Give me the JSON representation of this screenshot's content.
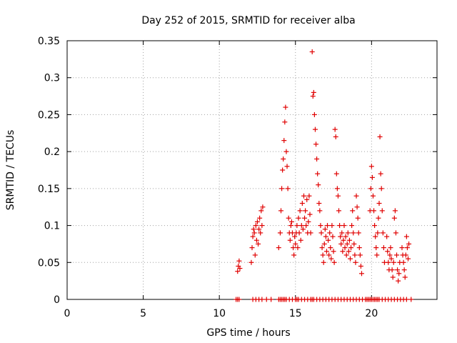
{
  "chart_data": {
    "type": "scatter",
    "title": "Day 252 of 2015, SRMTID for receiver alba",
    "xlabel": "GPS time / hours",
    "ylabel": "SRMTID / TECUs",
    "xlim": [
      0,
      24.3
    ],
    "ylim": [
      0,
      0.35
    ],
    "xticks": [
      0,
      5,
      10,
      15,
      20
    ],
    "xtick_labels": [
      "0",
      "5",
      "10",
      "15",
      "20"
    ],
    "yticks": [
      0,
      0.05,
      0.1,
      0.15,
      0.2,
      0.25,
      0.3,
      0.35
    ],
    "ytick_labels": [
      "0",
      "0.05",
      "0.1",
      "0.15",
      "0.2",
      "0.25",
      "0.3",
      "0.35"
    ],
    "grid": true,
    "legend": "none",
    "marker": "+",
    "marker_color": "#e00000",
    "series": [
      {
        "name": "SRMTID",
        "points": [
          [
            11.2,
            0.038
          ],
          [
            11.25,
            0.045
          ],
          [
            11.3,
            0.052
          ],
          [
            11.35,
            0.042
          ],
          [
            12.1,
            0.05
          ],
          [
            12.15,
            0.07
          ],
          [
            12.2,
            0.085
          ],
          [
            12.25,
            0.095
          ],
          [
            12.3,
            0.09
          ],
          [
            12.35,
            0.06
          ],
          [
            12.4,
            0.1
          ],
          [
            12.45,
            0.08
          ],
          [
            12.5,
            0.105
          ],
          [
            12.55,
            0.075
          ],
          [
            12.6,
            0.095
          ],
          [
            12.65,
            0.11
          ],
          [
            12.7,
            0.09
          ],
          [
            12.75,
            0.12
          ],
          [
            12.8,
            0.1
          ],
          [
            12.85,
            0.125
          ],
          [
            13.9,
            0.07
          ],
          [
            14.0,
            0.09
          ],
          [
            14.05,
            0.12
          ],
          [
            14.1,
            0.15
          ],
          [
            14.15,
            0.175
          ],
          [
            14.2,
            0.19
          ],
          [
            14.25,
            0.215
          ],
          [
            14.3,
            0.24
          ],
          [
            14.35,
            0.26
          ],
          [
            14.4,
            0.2
          ],
          [
            14.45,
            0.18
          ],
          [
            14.5,
            0.15
          ],
          [
            14.55,
            0.11
          ],
          [
            14.6,
            0.09
          ],
          [
            14.65,
            0.08
          ],
          [
            14.7,
            0.1
          ],
          [
            14.75,
            0.105
          ],
          [
            14.8,
            0.09
          ],
          [
            14.85,
            0.07
          ],
          [
            14.9,
            0.06
          ],
          [
            14.95,
            0.085
          ],
          [
            15.0,
            0.075
          ],
          [
            15.05,
            0.09
          ],
          [
            15.1,
            0.1
          ],
          [
            15.15,
            0.07
          ],
          [
            15.2,
            0.11
          ],
          [
            15.25,
            0.09
          ],
          [
            15.3,
            0.12
          ],
          [
            15.35,
            0.08
          ],
          [
            15.4,
            0.1
          ],
          [
            15.45,
            0.13
          ],
          [
            15.5,
            0.095
          ],
          [
            15.55,
            0.14
          ],
          [
            15.6,
            0.11
          ],
          [
            15.65,
            0.12
          ],
          [
            15.7,
            0.1
          ],
          [
            15.75,
            0.135
          ],
          [
            15.8,
            0.09
          ],
          [
            15.85,
            0.105
          ],
          [
            15.9,
            0.14
          ],
          [
            15.95,
            0.115
          ],
          [
            16.0,
            0.09
          ],
          [
            16.1,
            0.335
          ],
          [
            16.15,
            0.275
          ],
          [
            16.2,
            0.28
          ],
          [
            16.25,
            0.25
          ],
          [
            16.3,
            0.23
          ],
          [
            16.35,
            0.21
          ],
          [
            16.4,
            0.19
          ],
          [
            16.45,
            0.17
          ],
          [
            16.5,
            0.155
          ],
          [
            16.55,
            0.13
          ],
          [
            16.6,
            0.12
          ],
          [
            16.65,
            0.1
          ],
          [
            16.7,
            0.09
          ],
          [
            16.75,
            0.07
          ],
          [
            16.8,
            0.06
          ],
          [
            16.85,
            0.05
          ],
          [
            16.9,
            0.075
          ],
          [
            16.95,
            0.095
          ],
          [
            17.0,
            0.085
          ],
          [
            17.05,
            0.065
          ],
          [
            17.1,
            0.1
          ],
          [
            17.15,
            0.08
          ],
          [
            17.2,
            0.06
          ],
          [
            17.25,
            0.09
          ],
          [
            17.3,
            0.07
          ],
          [
            17.35,
            0.055
          ],
          [
            17.4,
            0.1
          ],
          [
            17.45,
            0.085
          ],
          [
            17.5,
            0.065
          ],
          [
            17.55,
            0.05
          ],
          [
            17.6,
            0.23
          ],
          [
            17.65,
            0.22
          ],
          [
            17.7,
            0.17
          ],
          [
            17.75,
            0.15
          ],
          [
            17.8,
            0.14
          ],
          [
            17.85,
            0.12
          ],
          [
            17.9,
            0.1
          ],
          [
            17.95,
            0.085
          ],
          [
            18.0,
            0.075
          ],
          [
            18.05,
            0.09
          ],
          [
            18.1,
            0.065
          ],
          [
            18.15,
            0.08
          ],
          [
            18.2,
            0.1
          ],
          [
            18.25,
            0.07
          ],
          [
            18.3,
            0.085
          ],
          [
            18.35,
            0.06
          ],
          [
            18.4,
            0.075
          ],
          [
            18.45,
            0.09
          ],
          [
            18.5,
            0.065
          ],
          [
            18.55,
            0.08
          ],
          [
            18.6,
            0.055
          ],
          [
            18.65,
            0.07
          ],
          [
            18.7,
            0.1
          ],
          [
            18.75,
            0.12
          ],
          [
            18.8,
            0.09
          ],
          [
            18.85,
            0.075
          ],
          [
            18.9,
            0.06
          ],
          [
            18.95,
            0.05
          ],
          [
            19.0,
            0.14
          ],
          [
            19.05,
            0.125
          ],
          [
            19.1,
            0.11
          ],
          [
            19.15,
            0.09
          ],
          [
            19.2,
            0.07
          ],
          [
            19.25,
            0.06
          ],
          [
            19.3,
            0.045
          ],
          [
            19.35,
            0.035
          ],
          [
            19.9,
            0.12
          ],
          [
            19.95,
            0.15
          ],
          [
            20.0,
            0.18
          ],
          [
            20.05,
            0.165
          ],
          [
            20.1,
            0.14
          ],
          [
            20.15,
            0.12
          ],
          [
            20.2,
            0.1
          ],
          [
            20.25,
            0.085
          ],
          [
            20.3,
            0.07
          ],
          [
            20.35,
            0.06
          ],
          [
            20.4,
            0.09
          ],
          [
            20.45,
            0.11
          ],
          [
            20.5,
            0.13
          ],
          [
            20.55,
            0.22
          ],
          [
            20.6,
            0.17
          ],
          [
            20.65,
            0.15
          ],
          [
            20.7,
            0.12
          ],
          [
            20.75,
            0.09
          ],
          [
            20.8,
            0.07
          ],
          [
            20.85,
            0.05
          ],
          [
            21.0,
            0.085
          ],
          [
            21.05,
            0.065
          ],
          [
            21.1,
            0.05
          ],
          [
            21.15,
            0.04
          ],
          [
            21.2,
            0.06
          ],
          [
            21.25,
            0.07
          ],
          [
            21.3,
            0.055
          ],
          [
            21.35,
            0.04
          ],
          [
            21.4,
            0.03
          ],
          [
            21.45,
            0.05
          ],
          [
            21.5,
            0.11
          ],
          [
            21.55,
            0.12
          ],
          [
            21.6,
            0.09
          ],
          [
            21.65,
            0.06
          ],
          [
            21.7,
            0.04
          ],
          [
            21.75,
            0.025
          ],
          [
            21.8,
            0.035
          ],
          [
            21.85,
            0.05
          ],
          [
            22.0,
            0.07
          ],
          [
            22.05,
            0.06
          ],
          [
            22.1,
            0.05
          ],
          [
            22.15,
            0.04
          ],
          [
            22.2,
            0.03
          ],
          [
            22.25,
            0.06
          ],
          [
            22.3,
            0.085
          ],
          [
            22.35,
            0.07
          ],
          [
            22.4,
            0.055
          ],
          [
            22.45,
            0.075
          ]
        ]
      },
      {
        "name": "zero-level",
        "points": [
          [
            11.1,
            0
          ],
          [
            11.2,
            0
          ],
          [
            11.3,
            0
          ],
          [
            12.2,
            0
          ],
          [
            12.4,
            0
          ],
          [
            12.6,
            0
          ],
          [
            12.8,
            0
          ],
          [
            13.1,
            0
          ],
          [
            13.4,
            0
          ],
          [
            13.9,
            0
          ],
          [
            14.0,
            0
          ],
          [
            14.1,
            0
          ],
          [
            14.2,
            0
          ],
          [
            14.3,
            0
          ],
          [
            14.4,
            0
          ],
          [
            14.6,
            0
          ],
          [
            14.8,
            0
          ],
          [
            15.0,
            0
          ],
          [
            15.1,
            0
          ],
          [
            15.2,
            0
          ],
          [
            15.4,
            0
          ],
          [
            15.6,
            0
          ],
          [
            15.8,
            0
          ],
          [
            16.0,
            0
          ],
          [
            16.1,
            0
          ],
          [
            16.2,
            0
          ],
          [
            16.4,
            0
          ],
          [
            16.6,
            0
          ],
          [
            16.8,
            0
          ],
          [
            17.0,
            0
          ],
          [
            17.2,
            0
          ],
          [
            17.4,
            0
          ],
          [
            17.6,
            0
          ],
          [
            17.8,
            0
          ],
          [
            18.0,
            0
          ],
          [
            18.2,
            0
          ],
          [
            18.4,
            0
          ],
          [
            18.6,
            0
          ],
          [
            18.8,
            0
          ],
          [
            19.0,
            0
          ],
          [
            19.2,
            0
          ],
          [
            19.4,
            0
          ],
          [
            19.6,
            0
          ],
          [
            19.7,
            0
          ],
          [
            19.8,
            0
          ],
          [
            19.9,
            0
          ],
          [
            20.0,
            0
          ],
          [
            20.1,
            0
          ],
          [
            20.2,
            0
          ],
          [
            20.3,
            0
          ],
          [
            20.4,
            0
          ],
          [
            20.5,
            0
          ],
          [
            20.7,
            0
          ],
          [
            20.9,
            0
          ],
          [
            21.1,
            0
          ],
          [
            21.3,
            0
          ],
          [
            21.5,
            0
          ],
          [
            21.7,
            0
          ],
          [
            21.9,
            0
          ],
          [
            22.1,
            0
          ],
          [
            22.3,
            0
          ],
          [
            22.6,
            0
          ]
        ]
      }
    ]
  }
}
